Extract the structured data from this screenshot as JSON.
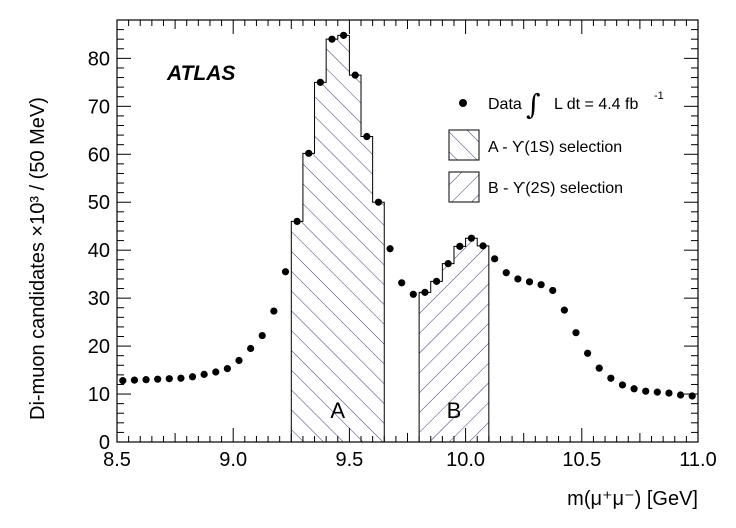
{
  "chart_data": {
    "type": "scatter",
    "experiment_label": "ATLAS",
    "xlabel": "m(μ⁺μ⁻) [GeV]",
    "ylabel": "Di-muon candidates ×10³ / (50 MeV)",
    "xlim": [
      8.5,
      11.0
    ],
    "ylim": [
      0,
      88
    ],
    "x_ticks": [
      8.5,
      9.0,
      9.5,
      10.0,
      10.5,
      11.0
    ],
    "x_tick_labels": [
      "8.5",
      "9.0",
      "9.5",
      "10.0",
      "10.5",
      "11.0"
    ],
    "y_ticks": [
      0,
      10,
      20,
      30,
      40,
      50,
      60,
      70,
      80
    ],
    "y_tick_labels": [
      "0",
      "10",
      "20",
      "30",
      "40",
      "50",
      "60",
      "70",
      "80"
    ],
    "data_series": {
      "name": "Data",
      "x": [
        8.525,
        8.575,
        8.625,
        8.675,
        8.725,
        8.775,
        8.825,
        8.875,
        8.925,
        8.975,
        9.025,
        9.075,
        9.125,
        9.175,
        9.225,
        9.275,
        9.325,
        9.375,
        9.425,
        9.475,
        9.525,
        9.575,
        9.625,
        9.675,
        9.725,
        9.775,
        9.825,
        9.875,
        9.925,
        9.975,
        10.025,
        10.075,
        10.125,
        10.175,
        10.225,
        10.275,
        10.325,
        10.375,
        10.425,
        10.475,
        10.525,
        10.575,
        10.625,
        10.675,
        10.725,
        10.775,
        10.825,
        10.875,
        10.925,
        10.975
      ],
      "y": [
        12.8,
        12.9,
        13.0,
        13.1,
        13.2,
        13.3,
        13.6,
        14.1,
        14.6,
        15.3,
        17.0,
        19.5,
        22.2,
        27.3,
        35.5,
        46.0,
        60.2,
        75.0,
        84.0,
        84.8,
        76.5,
        63.7,
        50.0,
        40.3,
        33.2,
        30.8,
        31.2,
        33.5,
        37.2,
        40.8,
        42.5,
        40.9,
        38.2,
        35.3,
        34.0,
        33.4,
        32.8,
        31.6,
        27.5,
        22.8,
        18.5,
        15.4,
        13.3,
        11.9,
        11.1,
        10.6,
        10.4,
        10.2,
        9.8,
        9.6
      ]
    },
    "regions": [
      {
        "label": "A",
        "legend": "A - ϒ(1S) selection",
        "x_range": [
          9.25,
          9.65
        ],
        "hatch": "forward"
      },
      {
        "label": "B",
        "legend": "B - ϒ(2S) selection",
        "x_range": [
          9.8,
          10.1
        ],
        "hatch": "backward"
      }
    ],
    "legend": {
      "data_prefix": "Data",
      "integral_sign": "∫",
      "lumi_text": "L dt = 4.4 fb",
      "lumi_exponent": "-1",
      "placement": "top-right"
    }
  }
}
